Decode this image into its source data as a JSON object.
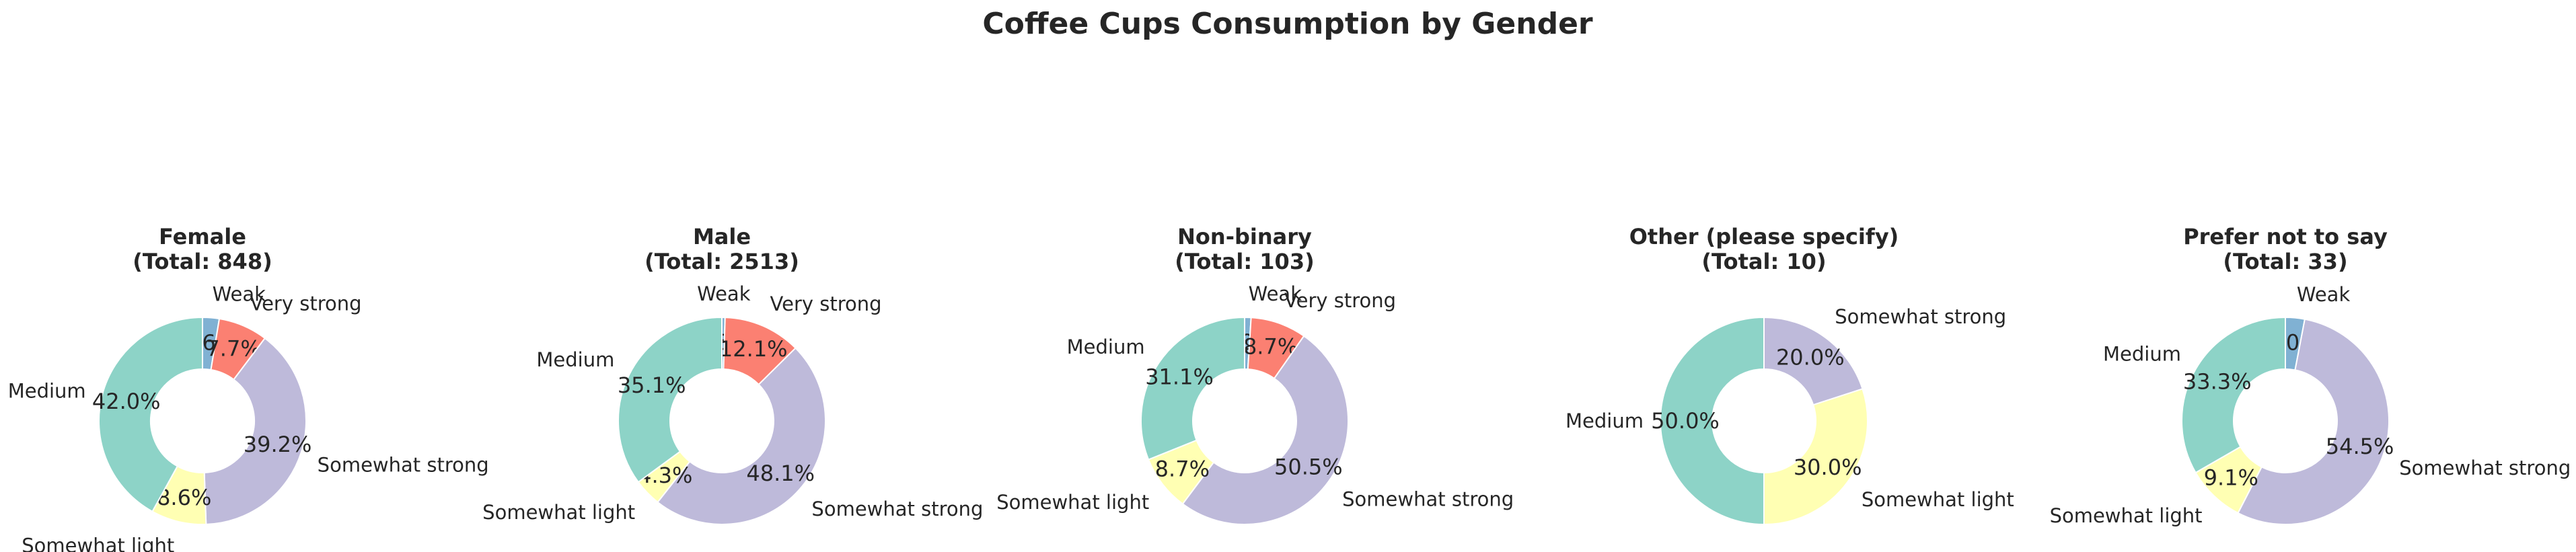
{
  "chart_data": {
    "type": "pie",
    "variant": "donut",
    "title": "Coffee Cups Consumption by Gender",
    "colors": {
      "Weak": "#80b1d3",
      "Very strong": "#fb8072",
      "Somewhat strong": "#bebada",
      "Somewhat light": "#ffffb3",
      "Medium": "#8dd3c7"
    },
    "panels": [
      {
        "title": "Female",
        "total_label": "(Total: 848)",
        "slices": [
          {
            "label": "Weak",
            "value": 2.6,
            "pct_label": "2.6%"
          },
          {
            "label": "Very strong",
            "value": 7.7,
            "pct_label": "7.7%"
          },
          {
            "label": "Somewhat strong",
            "value": 39.2,
            "pct_label": "39.2%"
          },
          {
            "label": "Somewhat light",
            "value": 8.6,
            "pct_label": "8.6%"
          },
          {
            "label": "Medium",
            "value": 42.0,
            "pct_label": "42.0%"
          }
        ]
      },
      {
        "title": "Male",
        "total_label": "(Total: 2513)",
        "slices": [
          {
            "label": "Weak",
            "value": 0.5,
            "pct_label": "0.5%"
          },
          {
            "label": "Very strong",
            "value": 12.1,
            "pct_label": "12.1%"
          },
          {
            "label": "Somewhat strong",
            "value": 48.1,
            "pct_label": "48.1%"
          },
          {
            "label": "Somewhat light",
            "value": 4.3,
            "pct_label": "4.3%"
          },
          {
            "label": "Medium",
            "value": 35.1,
            "pct_label": "35.1%"
          }
        ]
      },
      {
        "title": "Non-binary",
        "total_label": "(Total: 103)",
        "slices": [
          {
            "label": "Weak",
            "value": 1.0,
            "pct_label": "1.0%"
          },
          {
            "label": "Very strong",
            "value": 8.7,
            "pct_label": "8.7%"
          },
          {
            "label": "Somewhat strong",
            "value": 50.5,
            "pct_label": "50.5%"
          },
          {
            "label": "Somewhat light",
            "value": 8.7,
            "pct_label": "8.7%"
          },
          {
            "label": "Medium",
            "value": 31.1,
            "pct_label": "31.1%"
          }
        ]
      },
      {
        "title": "Other (please specify)",
        "total_label": "(Total: 10)",
        "slices": [
          {
            "label": "Somewhat strong",
            "value": 20.0,
            "pct_label": "20.0%"
          },
          {
            "label": "Somewhat light",
            "value": 30.0,
            "pct_label": "30.0%"
          },
          {
            "label": "Medium",
            "value": 50.0,
            "pct_label": "50.0%"
          }
        ]
      },
      {
        "title": "Prefer not to say",
        "total_label": "(Total: 33)",
        "slices": [
          {
            "label": "Weak",
            "value": 3.0,
            "pct_label": "3.0%"
          },
          {
            "label": "Somewhat strong",
            "value": 54.5,
            "pct_label": "54.5%"
          },
          {
            "label": "Somewhat light",
            "value": 9.1,
            "pct_label": "9.1%"
          },
          {
            "label": "Medium",
            "value": 33.3,
            "pct_label": "33.3%"
          }
        ]
      }
    ]
  }
}
